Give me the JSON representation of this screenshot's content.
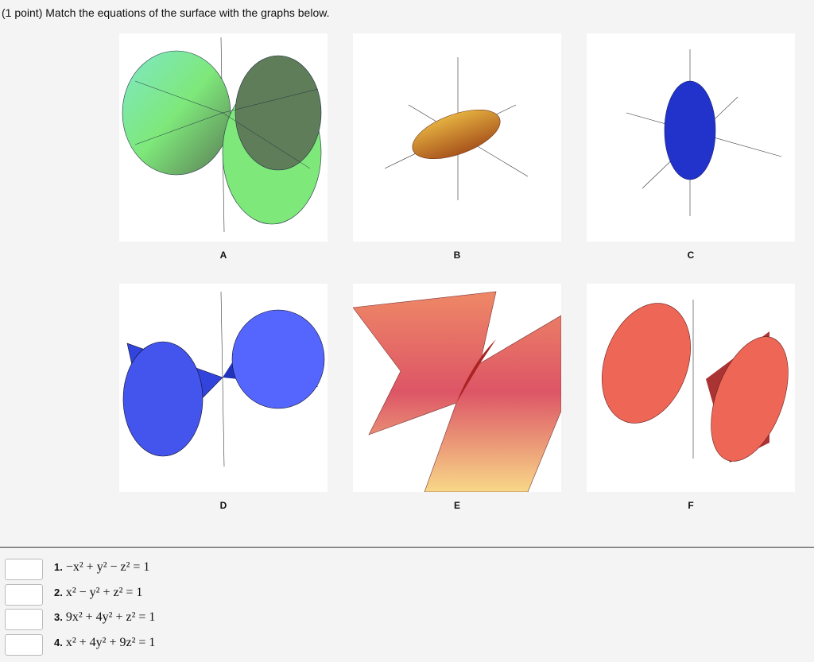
{
  "prompt": "(1 point) Match the equations of the surface with the graphs below.",
  "graphs": [
    "A",
    "B",
    "C",
    "D",
    "E",
    "F"
  ],
  "equations": [
    {
      "number": "1.",
      "equation": "−x² + y² − z² = 1"
    },
    {
      "number": "2.",
      "equation": "x² − y² + z² = 1"
    },
    {
      "number": "3.",
      "equation": "9x² + 4y² + z² = 1"
    },
    {
      "number": "4.",
      "equation": "x² + 4y² + 9z² = 1"
    }
  ]
}
